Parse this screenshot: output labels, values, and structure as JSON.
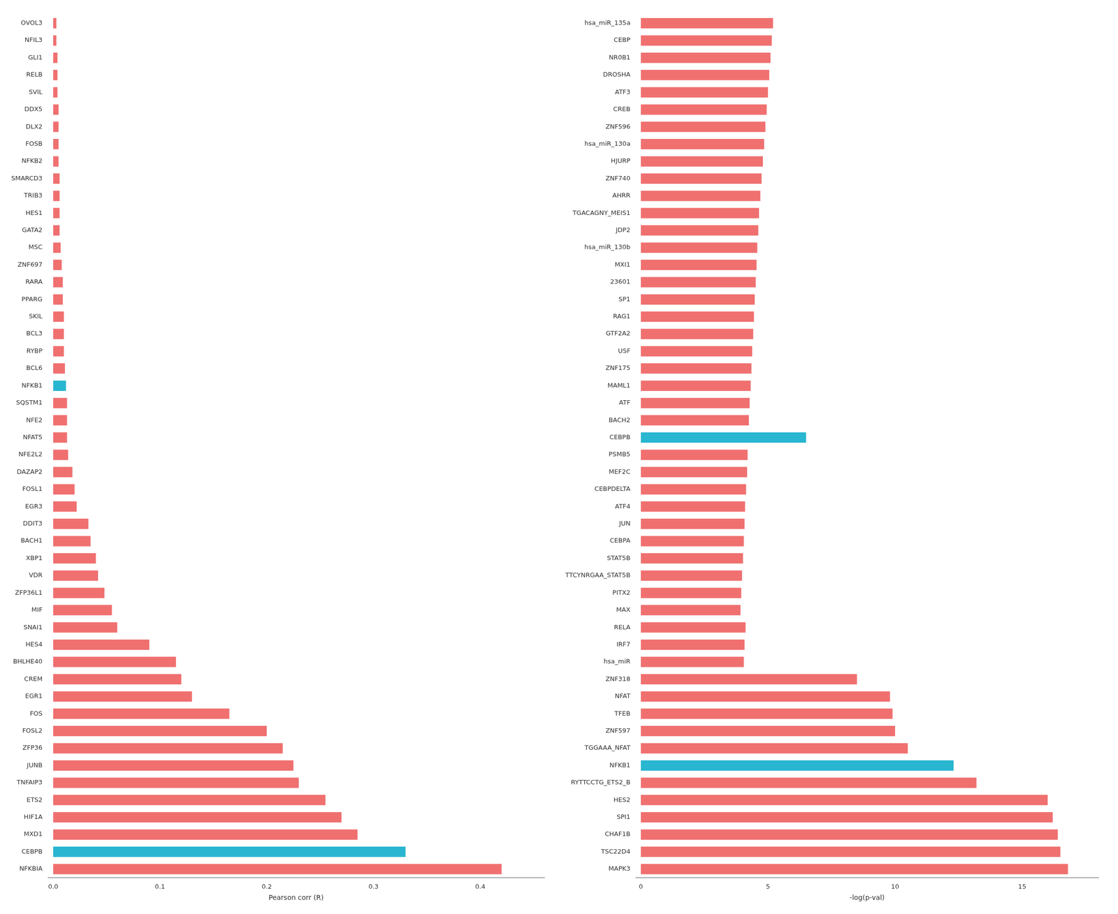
{
  "chart_data": [
    {
      "type": "bar",
      "orientation": "horizontal",
      "categories": [
        "OVOL3",
        "NFIL3",
        "GLI1",
        "RELB",
        "SVIL",
        "DDX5",
        "DLX2",
        "FOSB",
        "NFKB2",
        "SMARCD3",
        "TRIB3",
        "HES1",
        "GATA2",
        "MSC",
        "ZNF697",
        "RARA",
        "PPARG",
        "SKIL",
        "BCL3",
        "RYBP",
        "BCL6",
        "NFKB1",
        "SQSTM1",
        "NFE2",
        "NFAT5",
        "NFE2L2",
        "DAZAP2",
        "FOSL1",
        "EGR3",
        "DDIT3",
        "BACH1",
        "XBP1",
        "VDR",
        "ZFP36L1",
        "MIF",
        "SNAI1",
        "HES4",
        "BHLHE40",
        "CREM",
        "EGR1",
        "FOS",
        "FOSL2",
        "ZFP36",
        "JUNB",
        "TNFAIP3",
        "ETS2",
        "HIF1A",
        "MXD1",
        "CEBPB",
        "NFKBIA"
      ],
      "values": [
        0.003,
        0.003,
        0.004,
        0.004,
        0.004,
        0.005,
        0.005,
        0.005,
        0.005,
        0.006,
        0.006,
        0.006,
        0.006,
        0.007,
        0.008,
        0.009,
        0.009,
        0.01,
        0.01,
        0.01,
        0.011,
        0.012,
        0.013,
        0.013,
        0.013,
        0.014,
        0.018,
        0.02,
        0.022,
        0.033,
        0.035,
        0.04,
        0.042,
        0.048,
        0.055,
        0.06,
        0.09,
        0.115,
        0.12,
        0.13,
        0.165,
        0.2,
        0.215,
        0.225,
        0.23,
        0.255,
        0.27,
        0.285,
        0.33,
        0.42
      ],
      "colors": [
        "#f07070",
        "#f07070",
        "#f07070",
        "#f07070",
        "#f07070",
        "#f07070",
        "#f07070",
        "#f07070",
        "#f07070",
        "#f07070",
        "#f07070",
        "#f07070",
        "#f07070",
        "#f07070",
        "#f07070",
        "#f07070",
        "#f07070",
        "#f07070",
        "#f07070",
        "#f07070",
        "#f07070",
        "#29b6d0",
        "#f07070",
        "#f07070",
        "#f07070",
        "#f07070",
        "#f07070",
        "#f07070",
        "#f07070",
        "#f07070",
        "#f07070",
        "#f07070",
        "#f07070",
        "#f07070",
        "#f07070",
        "#f07070",
        "#f07070",
        "#f07070",
        "#f07070",
        "#f07070",
        "#f07070",
        "#f07070",
        "#f07070",
        "#f07070",
        "#f07070",
        "#f07070",
        "#f07070",
        "#f07070",
        "#29b6d0",
        "#f07070"
      ],
      "xlabel": "Pearson corr (R)",
      "xlim": [
        -0.005,
        0.46
      ],
      "xticks": [
        {
          "value": 0,
          "label": "0.0"
        },
        0.1,
        0.2,
        0.3,
        0.4
      ],
      "grid": false
    },
    {
      "type": "bar",
      "orientation": "horizontal",
      "categories": [
        "hsa_miR_135a",
        "CEBP",
        "NR0B1",
        "DROSHA",
        "ATF3",
        "CREB",
        "ZNF596",
        "hsa_miR_130a",
        "HJURP",
        "ZNF740",
        "AHRR",
        "TGACAGNY_MEIS1",
        "JDP2",
        "hsa_miR_130b",
        "MXI1",
        "23601",
        "SP1",
        "RAG1",
        "GTF2A2",
        "USF",
        "ZNF175",
        "MAML1",
        "ATF",
        "BACH2",
        "CEBPB",
        "PSMB5",
        "MEF2C",
        "CEBPDELTA",
        "ATF4",
        "JUN",
        "CEBPA",
        "STAT5B",
        "TTCYNRGAA_STAT5B",
        "PITX2",
        "MAX",
        "RELA",
        "IRF7",
        "hsa_miR",
        "ZNF318",
        "NFAT",
        "TFEB",
        "ZNF597",
        "TGGAAA_NFAT",
        "NFKB1",
        "RYTTCCTG_ETS2_B",
        "HES2",
        "SPI1",
        "CHAF1B",
        "TSC22D4",
        "MAPK3"
      ],
      "values": [
        5.2,
        5.15,
        5.1,
        5.05,
        5.0,
        4.95,
        4.9,
        4.85,
        4.8,
        4.75,
        4.7,
        4.65,
        4.62,
        4.58,
        4.55,
        4.52,
        4.48,
        4.45,
        4.42,
        4.38,
        4.35,
        4.32,
        4.28,
        4.25,
        6.5,
        4.2,
        4.18,
        4.14,
        4.1,
        4.08,
        4.05,
        4.02,
        3.98,
        3.95,
        3.92,
        4.12,
        4.08,
        4.05,
        8.5,
        9.8,
        9.9,
        10.0,
        10.5,
        12.3,
        13.2,
        16.0,
        16.2,
        16.4,
        16.5,
        16.8
      ],
      "colors": [
        "#f07070",
        "#f07070",
        "#f07070",
        "#f07070",
        "#f07070",
        "#f07070",
        "#f07070",
        "#f07070",
        "#f07070",
        "#f07070",
        "#f07070",
        "#f07070",
        "#f07070",
        "#f07070",
        "#f07070",
        "#f07070",
        "#f07070",
        "#f07070",
        "#f07070",
        "#f07070",
        "#f07070",
        "#f07070",
        "#f07070",
        "#f07070",
        "#29b6d0",
        "#f07070",
        "#f07070",
        "#f07070",
        "#f07070",
        "#f07070",
        "#f07070",
        "#f07070",
        "#f07070",
        "#f07070",
        "#f07070",
        "#f07070",
        "#f07070",
        "#f07070",
        "#f07070",
        "#f07070",
        "#f07070",
        "#f07070",
        "#f07070",
        "#29b6d0",
        "#f07070",
        "#f07070",
        "#f07070",
        "#f07070",
        "#f07070",
        "#f07070"
      ],
      "xlabel": "-log(p-val)",
      "xlim": [
        -0.2,
        18
      ],
      "xticks": [
        0,
        5,
        10,
        15
      ],
      "grid": false
    }
  ]
}
